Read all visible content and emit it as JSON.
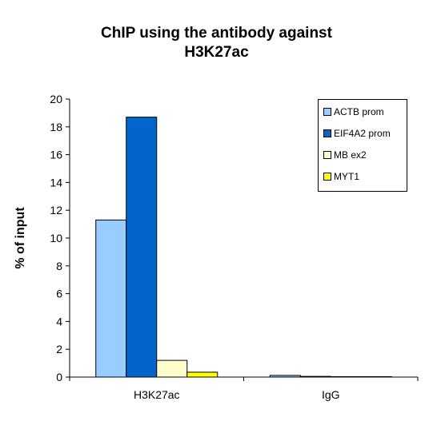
{
  "chart_data": {
    "type": "bar",
    "title_lines": [
      "ChIP using the antibody against",
      "H3K27ac"
    ],
    "xlabel": "",
    "ylabel": "% of input",
    "ylim": [
      0,
      20
    ],
    "yticks": [
      0,
      2,
      4,
      6,
      8,
      10,
      12,
      14,
      16,
      18,
      20
    ],
    "categories": [
      "H3K27ac",
      "IgG"
    ],
    "grid": false,
    "legend_position": "top-right",
    "series": [
      {
        "name": "ACTB prom",
        "color": "#99ccff",
        "values": [
          11.3,
          0.12
        ]
      },
      {
        "name": "EIF4A2 prom",
        "color": "#0066cc",
        "values": [
          18.7,
          0.05
        ]
      },
      {
        "name": "MB ex2",
        "color": "#ffffcc",
        "values": [
          1.2,
          0.03
        ]
      },
      {
        "name": "MYT1",
        "color": "#ffff00",
        "values": [
          0.35,
          0.03
        ]
      }
    ]
  }
}
